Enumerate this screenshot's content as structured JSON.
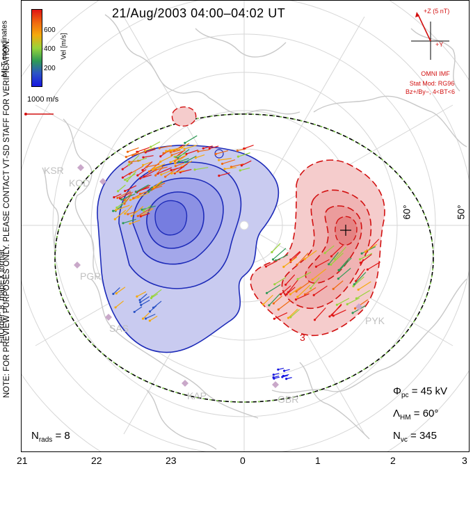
{
  "title": "21/Aug/2003 04:00–04:02 UT",
  "side_note_line1": "NOTE: FOR PREVIEW PURPOSES ONLY. PLEASE CONTACT VT-SD STAFF FOR VERIFICATION.",
  "side_note_line2": "FitOrder: 8, mapEX format",
  "coordinates_label": "MLT coordinates",
  "colorbar": {
    "unit": "Vel [m/s]",
    "ticks": [
      "600",
      "400",
      "200"
    ],
    "colors": [
      "#e01515",
      "#f06a10",
      "#f5a90d",
      "#98d43a",
      "#2e9a55",
      "#2c54c6",
      "#1717e0"
    ]
  },
  "scale_vector_label": "1000 m/s",
  "imf": {
    "z_label": "+Z (5 nT)",
    "y_label": "+Y",
    "source": "OMNI IMF",
    "stat_model": "Stat Mod: RG96",
    "condition": "Bz+/By−, 4<BT<6"
  },
  "stations": [
    "KSR",
    "KOD",
    "PGR",
    "SAS",
    "KAP",
    "GBR",
    "PYK"
  ],
  "latitude_labels": [
    "60°",
    "50°"
  ],
  "contour_label": "3",
  "stats": {
    "phi_pc_symbol": "Φ",
    "phi_pc_sub": "pc",
    "phi_pc_value": "= 45 kV",
    "lambda_symbol": "Λ",
    "lambda_sub": "HM",
    "lambda_value": "= 60°",
    "nvc_symbol": "N",
    "nvc_sub": "vc",
    "nvc_value": "= 345",
    "nrads_symbol": "N",
    "nrads_sub": "rads",
    "nrads_value": "= 8"
  },
  "mlt_ticks": [
    "21",
    "22",
    "23",
    "0",
    "1",
    "2",
    "3"
  ],
  "map_colors": {
    "negative_fill": "#c9cbf0",
    "positive_fill": "#f5cccc",
    "negative_line": "#1c2ab8",
    "positive_line": "#d21010",
    "coast": "#c8c8c8",
    "grid": "#d6d6d6"
  }
}
